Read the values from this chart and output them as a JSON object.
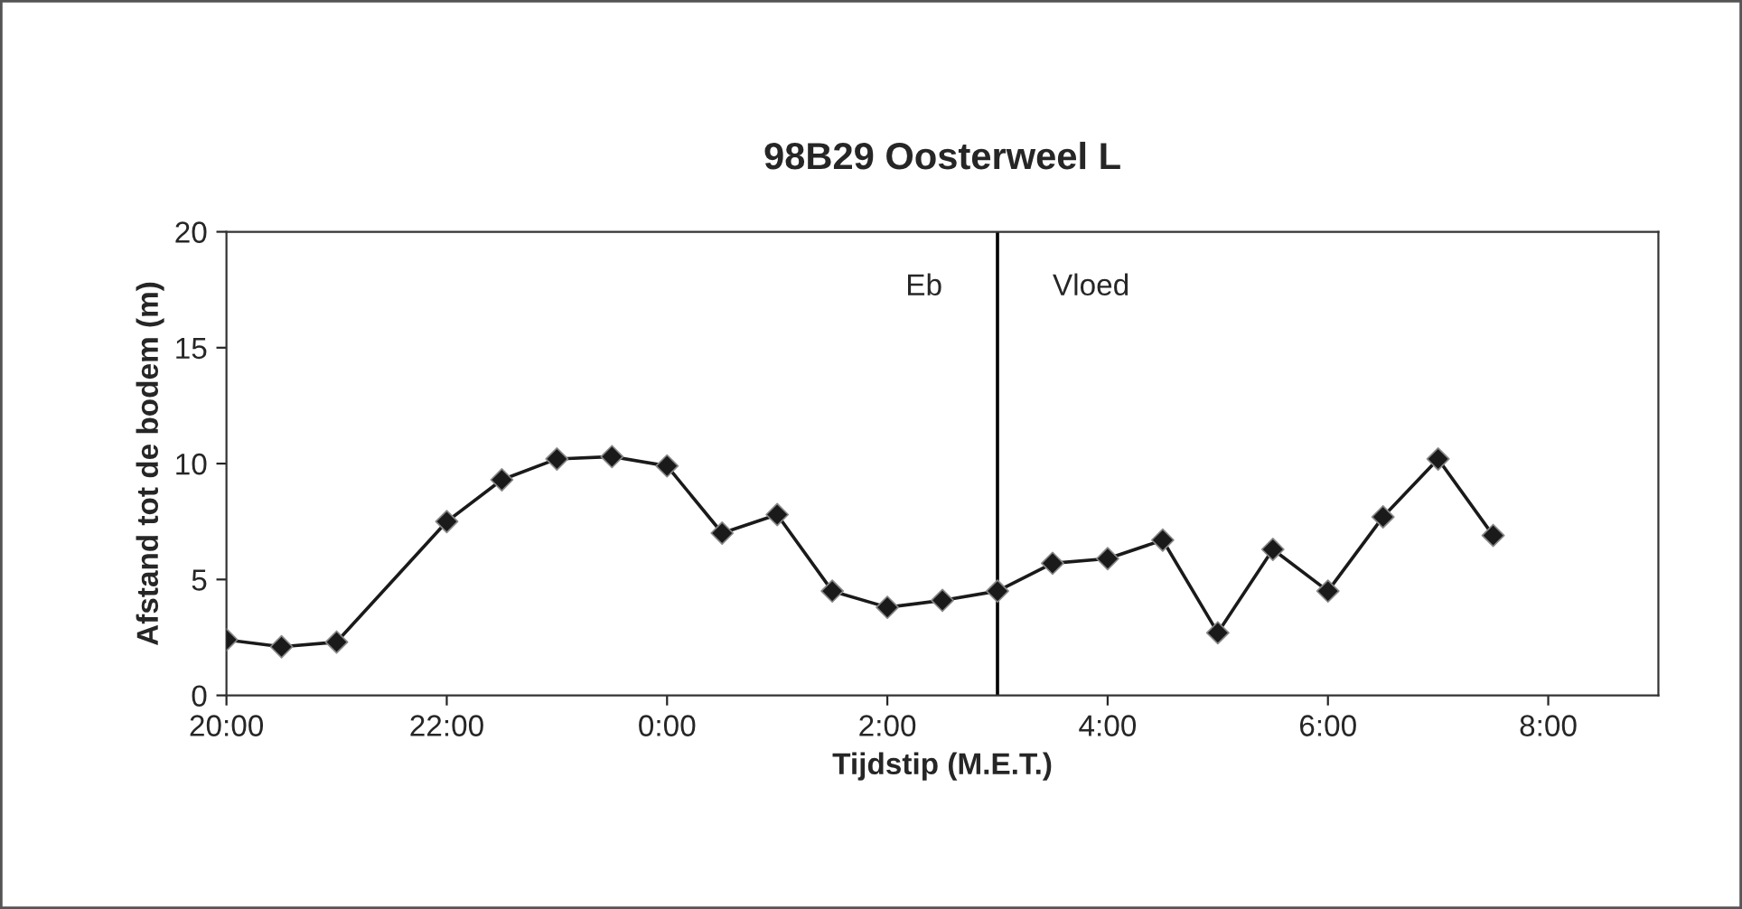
{
  "chart_data": {
    "type": "line",
    "title": "98B29 Oosterweel L",
    "xlabel": "Tijdstip (M.E.T.)",
    "ylabel": "Afstand tot de bodem (m)",
    "x": [
      "2000-01-01T20:00",
      "2000-01-01T20:30",
      "2000-01-01T21:00",
      "2000-01-01T22:00",
      "2000-01-01T22:30",
      "2000-01-01T23:00",
      "2000-01-01T23:30",
      "2000-01-02T00:00",
      "2000-01-02T00:30",
      "2000-01-02T01:00",
      "2000-01-02T01:30",
      "2000-01-02T02:00",
      "2000-01-02T02:30",
      "2000-01-02T03:00",
      "2000-01-02T03:30",
      "2000-01-02T04:00",
      "2000-01-02T04:30",
      "2000-01-02T05:00",
      "2000-01-02T05:30",
      "2000-01-02T06:00",
      "2000-01-02T06:30",
      "2000-01-02T07:00",
      "2000-01-02T07:30"
    ],
    "series": [
      {
        "color": "#1a1a1a",
        "values": [
          2.4,
          2.1,
          2.3,
          7.5,
          9.3,
          10.2,
          10.3,
          9.9,
          7.0,
          7.8,
          4.5,
          3.8,
          4.1,
          4.5,
          5.7,
          5.9,
          6.7,
          2.7,
          6.3,
          4.5,
          7.7,
          10.2,
          6.9
        ]
      }
    ],
    "xlim": [
      "2000-01-01T20:00",
      "2000-01-02T09:00"
    ],
    "xticks": [
      {
        "value": "2000-01-01T20:00",
        "label": "20:00"
      },
      {
        "value": "2000-01-01T22:00",
        "label": "22:00"
      },
      {
        "value": "2000-01-02T00:00",
        "label": "0:00"
      },
      {
        "value": "2000-01-02T02:00",
        "label": "2:00"
      },
      {
        "value": "2000-01-02T04:00",
        "label": "4:00"
      },
      {
        "value": "2000-01-02T06:00",
        "label": "6:00"
      },
      {
        "value": "2000-01-02T08:00",
        "label": "8:00"
      }
    ],
    "ylim": [
      0,
      20
    ],
    "yticks": [
      0,
      5,
      10,
      15,
      20
    ],
    "ref_lines": [
      {
        "axis": "x",
        "value": "2000-01-02T03:00",
        "color": "#000000"
      }
    ],
    "annotations": [
      "Eb",
      "Vloed"
    ],
    "marker": "diamond",
    "line_style": "solid",
    "grid": false,
    "legend": false
  }
}
